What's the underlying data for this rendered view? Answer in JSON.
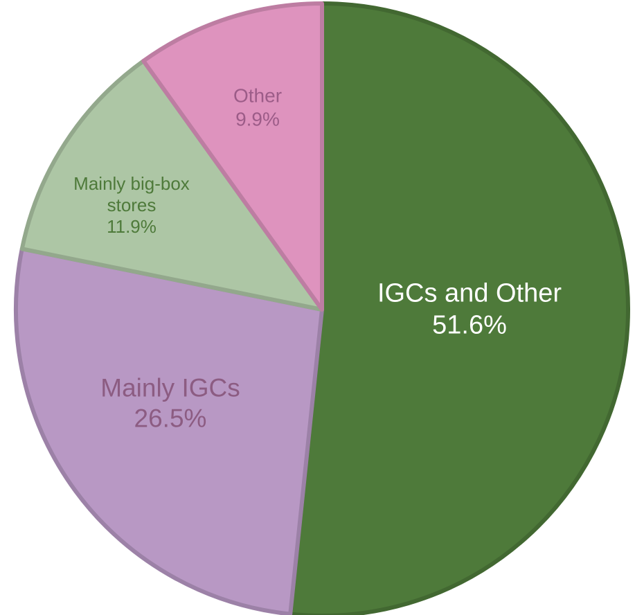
{
  "chart_data": {
    "type": "pie",
    "categories": [
      "IGCs and Other",
      "Mainly IGCs",
      "Mainly big-box stores",
      "Other"
    ],
    "values": [
      51.6,
      26.5,
      11.9,
      9.9
    ],
    "value_labels": [
      "51.6%",
      "26.5%",
      "11.9%",
      "9.9%"
    ],
    "colors": [
      "#4e7a3a",
      "#b898c4",
      "#adc6a5",
      "#de93be"
    ],
    "label_colors": [
      "#ffffff",
      "#8c5c82",
      "#4e7a3a",
      "#9c5c88"
    ]
  }
}
